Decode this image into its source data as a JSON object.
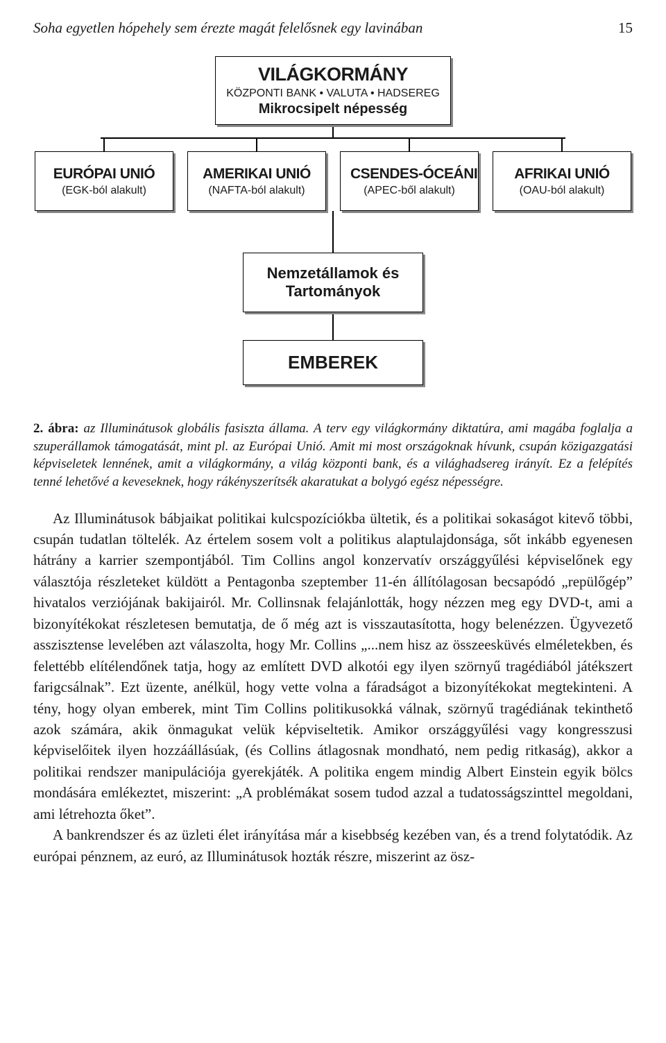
{
  "header": {
    "running_title": "Soha egyetlen hópehely sem érezte magát felelősnek egy lavinában",
    "page_number": "15"
  },
  "chart": {
    "type": "tree",
    "root": {
      "title": "VILÁGKORMÁNY",
      "sub1": "KÖZPONTI BANK • VALUTA • HADSEREG",
      "sub2": "Mikrocsipelt népesség"
    },
    "level2": [
      {
        "title": "EURÓPAI UNIÓ",
        "sub": "(EGK-ból alakult)"
      },
      {
        "title": "AMERIKAI UNIÓ",
        "sub": "(NAFTA-ból alakult)"
      },
      {
        "title": "CSENDES-ÓCEÁNI",
        "sub": "(APEC-ből alakult)"
      },
      {
        "title": "AFRIKAI UNIÓ",
        "sub": "(OAU-ból alakult)"
      }
    ],
    "level3": {
      "line1": "Nemzetállamok és",
      "line2": "Tartományok"
    },
    "level4": {
      "title": "EMBEREK"
    },
    "box_border_color": "#000000",
    "box_shadow_color": "#888888",
    "connector_color": "#000000",
    "background_color": "#ffffff"
  },
  "caption": {
    "lead": "2. ábra:",
    "text": " az Illuminátusok globális fasiszta állama. A terv egy világkormány diktatúra, ami magába foglalja a szuperállamok támogatását, mint pl. az Európai Unió. Amit mi most országoknak hívunk, csupán közigazgatási képviseletek lennének, amit a világkormány, a világ központi bank, és a világhadsereg irányít. Ez a felépítés tenné lehetővé a keveseknek, hogy rákényszerítsék akaratukat a bolygó egész népességre."
  },
  "body": {
    "p1": "Az Illuminátusok bábjaikat politikai kulcspozíciókba ültetik, és a politikai sokaságot kitevő többi, csupán tudatlan töltelék. Az értelem sosem volt a politikus alaptulajdonsága, sőt inkább egyenesen hátrány a karrier szempontjából. Tim Collins angol konzervatív országgyűlési képviselőnek egy választója részleteket küldött a Pentagonba szeptember 11-én állítólagosan becsapódó „repülőgép” hivatalos verziójának bakijairól. Mr. Collinsnak felajánlották, hogy nézzen meg egy DVD-t, ami a bizonyítékokat részletesen bemutatja, de ő még azt is visszautasította, hogy belenézzen. Ügyvezető asszisztense levelében azt válaszolta, hogy Mr. Collins  „...nem hisz az összeesküvés elméletekben, és felettébb elítélendőnek tatja, hogy az említett DVD alkotói egy ilyen szörnyű tragédiából játékszert farigcsálnak”. Ezt üzente, anélkül, hogy vette volna a fáradságot a bizonyítékokat megtekinteni. A tény, hogy olyan emberek, mint Tim Collins politikusokká válnak, szörnyű tragédiának tekinthető azok számára, akik önmagukat velük képviseltetik. Amikor országgyűlési vagy kongresszusi képviselőitek ilyen hozzáállásúak, (és Collins átlagosnak mondható, nem pedig ritkaság), akkor a politikai rendszer manipulációja gyerekjáték. A politika engem mindig Albert Einstein egyik bölcs mondására emlékeztet, miszerint: „A problémákat sosem tudod azzal a tudatosságszinttel megoldani, ami létrehozta őket”.",
    "p2": "A bankrendszer és az üzleti élet irányítása már a kisebbség kezében van, és a trend folytatódik. Az európai pénznem, az euró, az Illuminátusok hozták részre, miszerint az ösz-"
  }
}
